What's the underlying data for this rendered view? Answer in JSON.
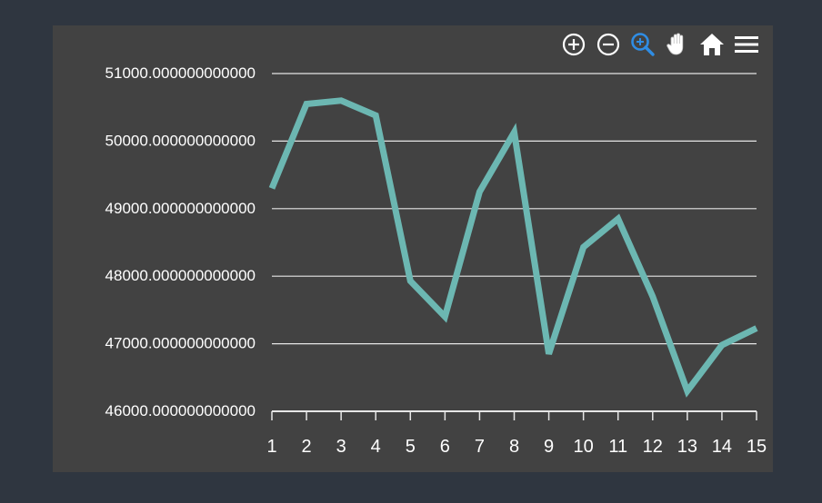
{
  "theme": {
    "page_bg": "#2f3640",
    "panel_bg": "#424242",
    "grid_color": "#e6e6e6",
    "axis_color": "#e6e6e6",
    "text_color": "#ffffff",
    "line_color": "#6cb7b2",
    "active_tool_color": "#2f8de4"
  },
  "toolbar": {
    "tools": [
      {
        "name": "zoom-in-icon",
        "active": false
      },
      {
        "name": "zoom-out-icon",
        "active": false
      },
      {
        "name": "zoom-select-icon",
        "active": true
      },
      {
        "name": "pan-hand-icon",
        "active": false
      },
      {
        "name": "home-icon",
        "active": false
      },
      {
        "name": "menu-icon",
        "active": false
      }
    ]
  },
  "chart_data": {
    "type": "line",
    "title": "",
    "xlabel": "",
    "ylabel": "",
    "x": [
      1,
      2,
      3,
      4,
      5,
      6,
      7,
      8,
      9,
      10,
      11,
      12,
      13,
      14,
      15
    ],
    "x_tick_labels": [
      "1",
      "2",
      "3",
      "4",
      "5",
      "6",
      "7",
      "8",
      "9",
      "10",
      "11",
      "12",
      "13",
      "14",
      "15"
    ],
    "series": [
      {
        "values": [
          49300,
          50550,
          50600,
          50380,
          47930,
          47400,
          49250,
          50130,
          46850,
          48430,
          48850,
          47700,
          46300,
          46980,
          47230
        ]
      }
    ],
    "ylim": [
      46000,
      51000
    ],
    "y_ticks": [
      46000,
      47000,
      48000,
      49000,
      50000,
      51000
    ],
    "y_tick_labels": [
      "46000.000000000000",
      "47000.000000000000",
      "48000.000000000000",
      "49000.000000000000",
      "50000.000000000000",
      "51000.000000000000"
    ],
    "grid": true,
    "legend": "none"
  }
}
